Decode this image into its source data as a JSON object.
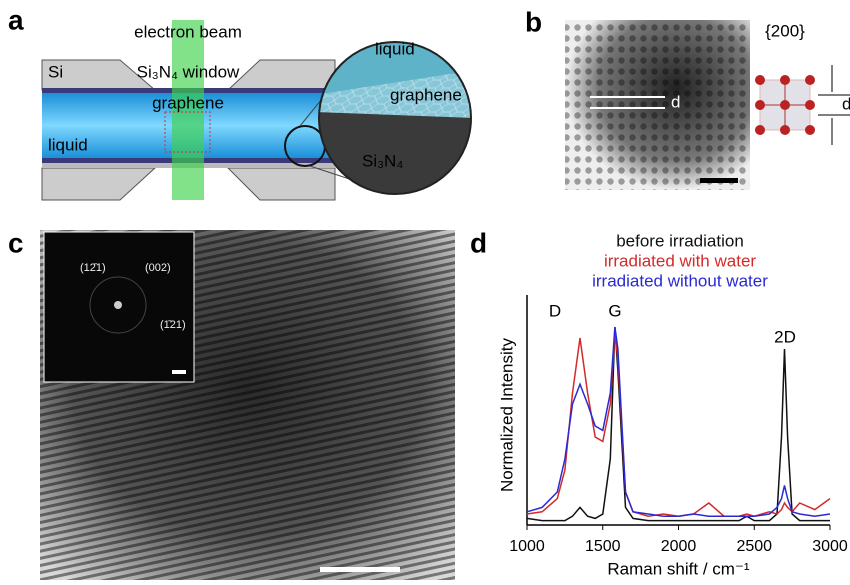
{
  "panels": {
    "a": {
      "label": "a",
      "beam": "electron beam",
      "si": "Si",
      "window": "Si₃N₄ window",
      "graphene": "graphene",
      "liquid": "liquid",
      "inset": {
        "liquid": "liquid",
        "graphene": "graphene",
        "substrate": "Si₃N₄"
      }
    },
    "b": {
      "label": "b",
      "spacing": "d",
      "plane": "{200}",
      "crystal_spacing": "d"
    },
    "c": {
      "label": "c",
      "fft": [
        "(12̄1)",
        "(002)",
        "(1̄21)"
      ]
    },
    "d": {
      "label": "d"
    }
  },
  "chart_data": {
    "type": "line",
    "xlabel": "Raman shift / cm⁻¹",
    "ylabel": "Normalized Intensity",
    "peak_labels": [
      "D",
      "G",
      "2D"
    ],
    "x": [
      1000,
      1100,
      1200,
      1250,
      1300,
      1350,
      1400,
      1450,
      1500,
      1550,
      1580,
      1600,
      1650,
      1700,
      1800,
      1900,
      2000,
      2100,
      2200,
      2300,
      2400,
      2450,
      2500,
      2600,
      2650,
      2680,
      2700,
      2720,
      2750,
      2800,
      2900,
      3000
    ],
    "xlim": [
      1000,
      3000
    ],
    "xticks": [
      1000,
      1500,
      2000,
      2500,
      3000
    ],
    "ylim": [
      0,
      1
    ],
    "series": [
      {
        "name": "before irradiation",
        "color": "#111111",
        "values": [
          0.03,
          0.02,
          0.02,
          0.02,
          0.04,
          0.08,
          0.04,
          0.03,
          0.05,
          0.3,
          0.9,
          0.7,
          0.08,
          0.03,
          0.02,
          0.02,
          0.02,
          0.02,
          0.02,
          0.02,
          0.02,
          0.04,
          0.02,
          0.02,
          0.05,
          0.4,
          0.8,
          0.4,
          0.05,
          0.02,
          0.02,
          0.02
        ]
      },
      {
        "name": "irradiated with water",
        "color": "#d42a2a",
        "values": [
          0.05,
          0.06,
          0.12,
          0.25,
          0.6,
          0.85,
          0.6,
          0.4,
          0.38,
          0.55,
          0.88,
          0.75,
          0.15,
          0.06,
          0.04,
          0.05,
          0.04,
          0.05,
          0.1,
          0.04,
          0.04,
          0.05,
          0.04,
          0.06,
          0.05,
          0.07,
          0.1,
          0.08,
          0.06,
          0.1,
          0.07,
          0.12
        ]
      },
      {
        "name": "irradiated without water",
        "color": "#2a2ad4",
        "values": [
          0.06,
          0.08,
          0.15,
          0.3,
          0.55,
          0.64,
          0.55,
          0.45,
          0.43,
          0.6,
          0.9,
          0.8,
          0.15,
          0.06,
          0.05,
          0.04,
          0.04,
          0.05,
          0.04,
          0.04,
          0.04,
          0.04,
          0.04,
          0.05,
          0.08,
          0.12,
          0.18,
          0.12,
          0.06,
          0.05,
          0.04,
          0.05
        ]
      }
    ]
  }
}
